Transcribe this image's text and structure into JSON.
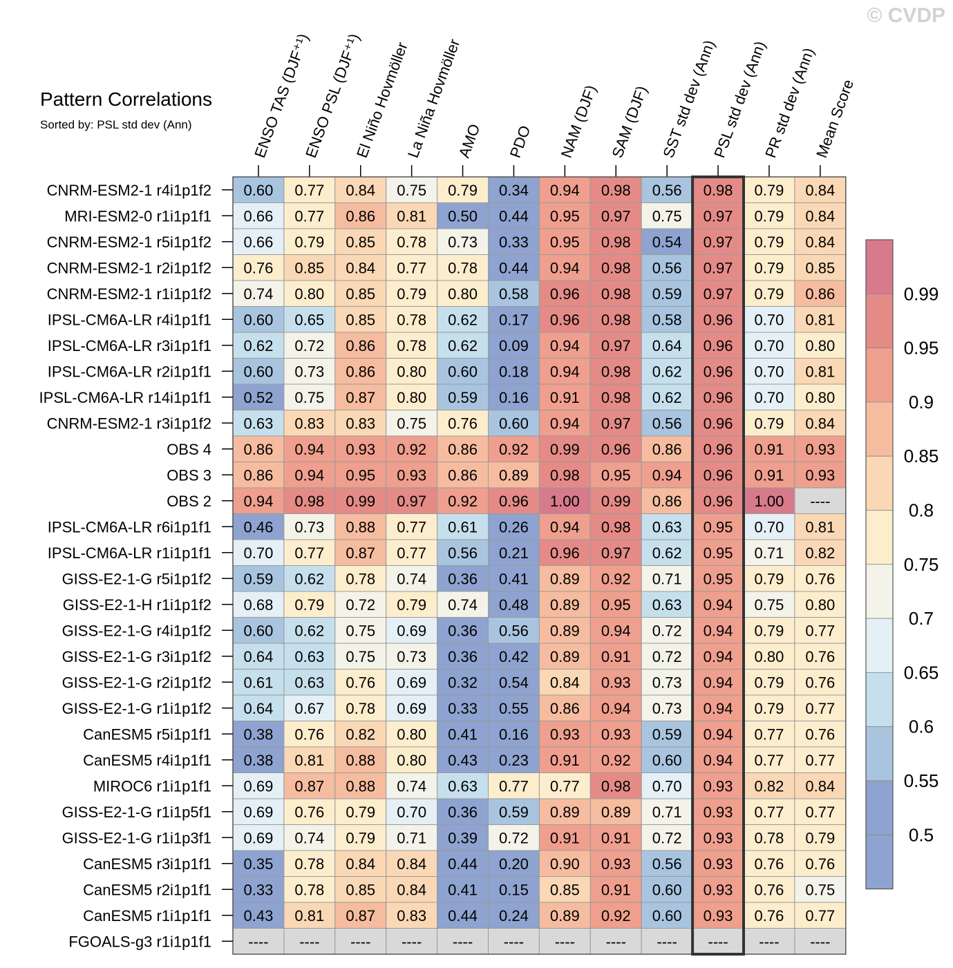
{
  "chart_data": {
    "type": "heatmap",
    "title": "Pattern Correlations",
    "subtitle": "Sorted by: PSL std dev (Ann)",
    "watermark": "© CVDP",
    "columns": [
      "ENSO TAS (DJF⁺¹)",
      "ENSO PSL (DJF⁺¹)",
      "El Niño Hovmöller",
      "La Niña Hovmöller",
      "AMO",
      "PDO",
      "NAM (DJF)",
      "SAM (DJF)",
      "SST std dev (Ann)",
      "PSL std dev (Ann)",
      "PR std dev (Ann)",
      "Mean Score"
    ],
    "highlighted_column": "PSL std dev (Ann)",
    "missing_label": "----",
    "rows": [
      {
        "name": "CNRM-ESM2-1 r4i1p1f2",
        "values": [
          "0.60",
          "0.77",
          "0.84",
          "0.75",
          "0.79",
          "0.34",
          "0.94",
          "0.98",
          "0.56",
          "0.98",
          "0.79",
          "0.84"
        ]
      },
      {
        "name": "MRI-ESM2-0 r1i1p1f1",
        "values": [
          "0.66",
          "0.77",
          "0.86",
          "0.81",
          "0.50",
          "0.44",
          "0.95",
          "0.97",
          "0.75",
          "0.97",
          "0.79",
          "0.84"
        ]
      },
      {
        "name": "CNRM-ESM2-1 r5i1p1f2",
        "values": [
          "0.66",
          "0.79",
          "0.85",
          "0.78",
          "0.73",
          "0.33",
          "0.95",
          "0.98",
          "0.54",
          "0.97",
          "0.79",
          "0.84"
        ]
      },
      {
        "name": "CNRM-ESM2-1 r2i1p1f2",
        "values": [
          "0.76",
          "0.85",
          "0.84",
          "0.77",
          "0.78",
          "0.44",
          "0.94",
          "0.98",
          "0.56",
          "0.97",
          "0.79",
          "0.85"
        ]
      },
      {
        "name": "CNRM-ESM2-1 r1i1p1f2",
        "values": [
          "0.74",
          "0.80",
          "0.85",
          "0.79",
          "0.80",
          "0.58",
          "0.96",
          "0.98",
          "0.59",
          "0.97",
          "0.79",
          "0.86"
        ]
      },
      {
        "name": "IPSL-CM6A-LR r4i1p1f1",
        "values": [
          "0.60",
          "0.65",
          "0.85",
          "0.78",
          "0.62",
          "0.17",
          "0.96",
          "0.98",
          "0.58",
          "0.96",
          "0.70",
          "0.81"
        ]
      },
      {
        "name": "IPSL-CM6A-LR r3i1p1f1",
        "values": [
          "0.62",
          "0.72",
          "0.86",
          "0.78",
          "0.62",
          "0.09",
          "0.94",
          "0.97",
          "0.64",
          "0.96",
          "0.70",
          "0.80"
        ]
      },
      {
        "name": "IPSL-CM6A-LR r2i1p1f1",
        "values": [
          "0.60",
          "0.73",
          "0.86",
          "0.80",
          "0.60",
          "0.18",
          "0.94",
          "0.98",
          "0.62",
          "0.96",
          "0.70",
          "0.81"
        ]
      },
      {
        "name": "IPSL-CM6A-LR r14i1p1f1",
        "values": [
          "0.52",
          "0.75",
          "0.87",
          "0.80",
          "0.59",
          "0.16",
          "0.91",
          "0.98",
          "0.62",
          "0.96",
          "0.70",
          "0.80"
        ]
      },
      {
        "name": "CNRM-ESM2-1 r3i1p1f2",
        "values": [
          "0.63",
          "0.83",
          "0.83",
          "0.75",
          "0.76",
          "0.60",
          "0.94",
          "0.97",
          "0.56",
          "0.96",
          "0.79",
          "0.84"
        ]
      },
      {
        "name": "OBS 4",
        "values": [
          "0.86",
          "0.94",
          "0.93",
          "0.92",
          "0.86",
          "0.92",
          "0.99",
          "0.96",
          "0.86",
          "0.96",
          "0.91",
          "0.93"
        ]
      },
      {
        "name": "OBS 3",
        "values": [
          "0.86",
          "0.94",
          "0.95",
          "0.93",
          "0.86",
          "0.89",
          "0.98",
          "0.95",
          "0.94",
          "0.96",
          "0.91",
          "0.93"
        ]
      },
      {
        "name": "OBS 2",
        "values": [
          "0.94",
          "0.98",
          "0.99",
          "0.97",
          "0.92",
          "0.96",
          "1.00",
          "0.99",
          "0.86",
          "0.96",
          "1.00",
          "----"
        ]
      },
      {
        "name": "IPSL-CM6A-LR r6i1p1f1",
        "values": [
          "0.46",
          "0.73",
          "0.88",
          "0.77",
          "0.61",
          "0.26",
          "0.94",
          "0.98",
          "0.63",
          "0.95",
          "0.70",
          "0.81"
        ]
      },
      {
        "name": "IPSL-CM6A-LR r1i1p1f1",
        "values": [
          "0.70",
          "0.77",
          "0.87",
          "0.77",
          "0.56",
          "0.21",
          "0.96",
          "0.97",
          "0.62",
          "0.95",
          "0.71",
          "0.82"
        ]
      },
      {
        "name": "GISS-E2-1-G r5i1p1f2",
        "values": [
          "0.59",
          "0.62",
          "0.78",
          "0.74",
          "0.36",
          "0.41",
          "0.89",
          "0.92",
          "0.71",
          "0.95",
          "0.79",
          "0.76"
        ]
      },
      {
        "name": "GISS-E2-1-H r1i1p1f2",
        "values": [
          "0.68",
          "0.79",
          "0.72",
          "0.79",
          "0.74",
          "0.48",
          "0.89",
          "0.95",
          "0.63",
          "0.94",
          "0.75",
          "0.80"
        ]
      },
      {
        "name": "GISS-E2-1-G r4i1p1f2",
        "values": [
          "0.60",
          "0.62",
          "0.75",
          "0.69",
          "0.36",
          "0.56",
          "0.89",
          "0.94",
          "0.72",
          "0.94",
          "0.79",
          "0.77"
        ]
      },
      {
        "name": "GISS-E2-1-G r3i1p1f2",
        "values": [
          "0.64",
          "0.63",
          "0.75",
          "0.73",
          "0.36",
          "0.42",
          "0.89",
          "0.91",
          "0.72",
          "0.94",
          "0.80",
          "0.76"
        ]
      },
      {
        "name": "GISS-E2-1-G r2i1p1f2",
        "values": [
          "0.61",
          "0.63",
          "0.76",
          "0.69",
          "0.32",
          "0.54",
          "0.84",
          "0.93",
          "0.73",
          "0.94",
          "0.79",
          "0.76"
        ]
      },
      {
        "name": "GISS-E2-1-G r1i1p1f2",
        "values": [
          "0.64",
          "0.67",
          "0.78",
          "0.69",
          "0.33",
          "0.55",
          "0.86",
          "0.94",
          "0.73",
          "0.94",
          "0.79",
          "0.77"
        ]
      },
      {
        "name": "CanESM5 r5i1p1f1",
        "values": [
          "0.38",
          "0.76",
          "0.82",
          "0.80",
          "0.41",
          "0.16",
          "0.93",
          "0.93",
          "0.59",
          "0.94",
          "0.77",
          "0.76"
        ]
      },
      {
        "name": "CanESM5 r4i1p1f1",
        "values": [
          "0.38",
          "0.81",
          "0.88",
          "0.80",
          "0.43",
          "0.23",
          "0.91",
          "0.92",
          "0.60",
          "0.94",
          "0.77",
          "0.77"
        ]
      },
      {
        "name": "MIROC6 r1i1p1f1",
        "values": [
          "0.69",
          "0.87",
          "0.88",
          "0.74",
          "0.63",
          "0.77",
          "0.77",
          "0.98",
          "0.70",
          "0.93",
          "0.82",
          "0.84"
        ]
      },
      {
        "name": "GISS-E2-1-G r1i1p5f1",
        "values": [
          "0.69",
          "0.76",
          "0.79",
          "0.70",
          "0.36",
          "0.59",
          "0.89",
          "0.89",
          "0.71",
          "0.93",
          "0.77",
          "0.77"
        ]
      },
      {
        "name": "GISS-E2-1-G r1i1p3f1",
        "values": [
          "0.69",
          "0.74",
          "0.79",
          "0.71",
          "0.39",
          "0.72",
          "0.91",
          "0.91",
          "0.72",
          "0.93",
          "0.78",
          "0.79"
        ]
      },
      {
        "name": "CanESM5 r3i1p1f1",
        "values": [
          "0.35",
          "0.78",
          "0.84",
          "0.84",
          "0.44",
          "0.20",
          "0.90",
          "0.93",
          "0.56",
          "0.93",
          "0.76",
          "0.76"
        ]
      },
      {
        "name": "CanESM5 r2i1p1f1",
        "values": [
          "0.33",
          "0.78",
          "0.85",
          "0.84",
          "0.41",
          "0.15",
          "0.85",
          "0.91",
          "0.60",
          "0.93",
          "0.76",
          "0.75"
        ]
      },
      {
        "name": "CanESM5 r1i1p1f1",
        "values": [
          "0.43",
          "0.81",
          "0.87",
          "0.83",
          "0.44",
          "0.24",
          "0.89",
          "0.92",
          "0.60",
          "0.93",
          "0.76",
          "0.77"
        ]
      },
      {
        "name": "FGOALS-g3 r1i1p1f1",
        "values": [
          "----",
          "----",
          "----",
          "----",
          "----",
          "----",
          "----",
          "----",
          "----",
          "----",
          "----",
          "----"
        ]
      }
    ],
    "colorbar": {
      "ticks": [
        "0.99",
        "0.95",
        "0.9",
        "0.85",
        "0.8",
        "0.75",
        "0.7",
        "0.65",
        "0.6",
        "0.55",
        "0.5"
      ],
      "colors_top_to_bottom": [
        "#d67a8c",
        "#e48b87",
        "#ef9f8e",
        "#f6bc9f",
        "#fad8b5",
        "#fcedcd",
        "#f4f3e9",
        "#e4f0f5",
        "#c6dfec",
        "#a9c4df",
        "#8ea3cf"
      ],
      "missing_color": "#d9d9d9",
      "low_color": "#8ea3cf"
    }
  }
}
